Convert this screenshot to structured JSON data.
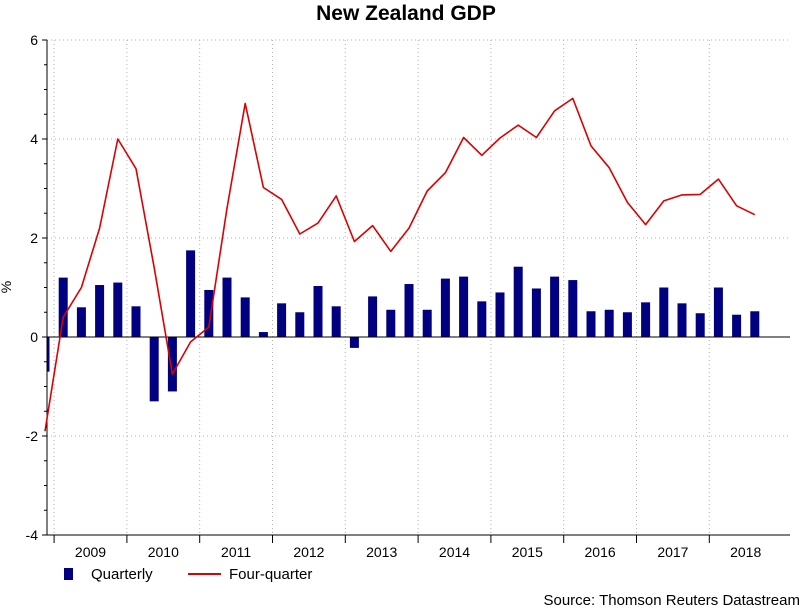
{
  "chart_data": {
    "type": "bar",
    "title": "New Zealand GDP",
    "ylabel": "%",
    "xlabel": "",
    "ylim": [
      -4,
      6
    ],
    "yticks": [
      -4,
      -2,
      0,
      2,
      4,
      6
    ],
    "ytick_labels": [
      "-4",
      "-2",
      "0",
      "2",
      "4",
      "6"
    ],
    "year_labels": [
      "2009",
      "2010",
      "2011",
      "2012",
      "2013",
      "2014",
      "2015",
      "2016",
      "2017",
      "2018"
    ],
    "categories": [
      "2008Q4",
      "2009Q1",
      "2009Q2",
      "2009Q3",
      "2009Q4",
      "2010Q1",
      "2010Q2",
      "2010Q3",
      "2010Q4",
      "2011Q1",
      "2011Q2",
      "2011Q3",
      "2011Q4",
      "2012Q1",
      "2012Q2",
      "2012Q3",
      "2012Q4",
      "2013Q1",
      "2013Q2",
      "2013Q3",
      "2013Q4",
      "2014Q1",
      "2014Q2",
      "2014Q3",
      "2014Q4",
      "2015Q1",
      "2015Q2",
      "2015Q3",
      "2015Q4",
      "2016Q1",
      "2016Q2",
      "2016Q3",
      "2016Q4",
      "2017Q1",
      "2017Q2",
      "2017Q3",
      "2017Q4",
      "2018Q1",
      "2018Q2",
      "2018Q3"
    ],
    "series": [
      {
        "name": "Quarterly",
        "type": "bar",
        "color": "#000080",
        "values": [
          -0.7,
          1.2,
          0.6,
          1.05,
          1.1,
          0.62,
          -1.3,
          -1.1,
          1.75,
          0.95,
          1.2,
          0.8,
          0.1,
          0.68,
          0.5,
          1.03,
          0.62,
          -0.22,
          0.82,
          0.55,
          1.07,
          0.55,
          1.18,
          1.22,
          0.72,
          0.9,
          1.42,
          0.98,
          1.22,
          1.15,
          0.52,
          0.55,
          0.5,
          0.7,
          1.0,
          0.68,
          0.48,
          1.0,
          0.45,
          0.52
        ]
      },
      {
        "name": "Four-quarter",
        "type": "line",
        "color": "#dd0000",
        "values": [
          -1.9,
          0.4,
          1.0,
          2.2,
          4.0,
          3.4,
          1.4,
          -0.75,
          -0.1,
          0.2,
          2.6,
          4.72,
          3.02,
          2.78,
          2.08,
          2.3,
          2.85,
          1.93,
          2.25,
          1.73,
          2.2,
          2.95,
          3.32,
          4.03,
          3.67,
          4.02,
          4.28,
          4.03,
          4.57,
          4.82,
          3.86,
          3.42,
          2.72,
          2.27,
          2.75,
          2.87,
          2.88,
          3.19,
          2.65,
          2.47
        ]
      }
    ],
    "legend_position": "bottom-left",
    "grid": true
  },
  "legend": {
    "quarterly_label": "Quarterly",
    "fourquarter_label": "Four-quarter"
  },
  "source_note": "Source: Thomson Reuters Datastream"
}
